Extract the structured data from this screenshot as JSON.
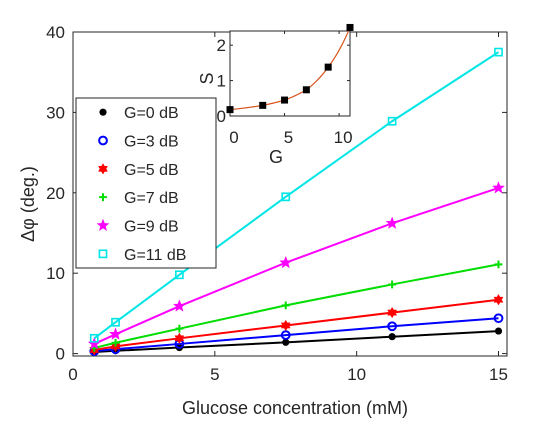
{
  "chart_data": [
    {
      "type": "line",
      "xlabel": "Glucose concentration (mM)",
      "ylabel_symbol": "Δφ",
      "ylabel_unit": "(deg.)",
      "xlim": [
        0,
        15.3
      ],
      "ylim": [
        -0.3,
        40
      ],
      "xticks": [
        "0",
        "5",
        "10",
        "15"
      ],
      "xtick_values": [
        0,
        5,
        10,
        15
      ],
      "yticks": [
        "0",
        "10",
        "20",
        "30",
        "40"
      ],
      "ytick_values": [
        0,
        10,
        20,
        30,
        40
      ],
      "grid": false,
      "legend_position": "left-middle",
      "x": [
        0.75,
        1.5,
        3.75,
        7.5,
        11.25,
        15
      ],
      "series": [
        {
          "name": "G=0 dB",
          "marker": "dot",
          "color": "#000000",
          "values": [
            0.2,
            0.35,
            0.75,
            1.4,
            2.1,
            2.8
          ]
        },
        {
          "name": "G=3 dB",
          "marker": "circle",
          "color": "#0000ff",
          "values": [
            0.3,
            0.55,
            1.2,
            2.3,
            3.4,
            4.4
          ]
        },
        {
          "name": "G=5 dB",
          "marker": "hexagram",
          "color": "#ff0000",
          "values": [
            0.45,
            0.9,
            1.9,
            3.5,
            5.1,
            6.7
          ]
        },
        {
          "name": "G=7 dB",
          "marker": "plus",
          "color": "#00dd00",
          "values": [
            0.7,
            1.35,
            3.1,
            6.0,
            8.6,
            11.1
          ]
        },
        {
          "name": "G=9 dB",
          "marker": "pentagram",
          "color": "#ff00ff",
          "values": [
            1.2,
            2.4,
            5.9,
            11.3,
            16.2,
            20.6
          ]
        },
        {
          "name": "G=11 dB",
          "marker": "square",
          "color": "#00e5e5",
          "values": [
            1.9,
            3.9,
            9.8,
            19.5,
            28.9,
            37.5
          ]
        }
      ]
    },
    {
      "type": "line",
      "inset": true,
      "xlabel": "G",
      "ylabel": "S",
      "xlim": [
        0,
        11
      ],
      "ylim": [
        0,
        2.4
      ],
      "xticks": [
        "0",
        "5",
        "10"
      ],
      "xtick_values": [
        0,
        5,
        10
      ],
      "yticks": [
        "0",
        "1",
        "2"
      ],
      "ytick_values": [
        0,
        1,
        2
      ],
      "x": [
        0,
        3,
        5,
        7,
        9,
        11
      ],
      "series": [
        {
          "marker": "square",
          "color": "#000000",
          "fit_color": "#d95319",
          "values": [
            0.18,
            0.3,
            0.45,
            0.74,
            1.38,
            2.5
          ]
        }
      ]
    }
  ]
}
